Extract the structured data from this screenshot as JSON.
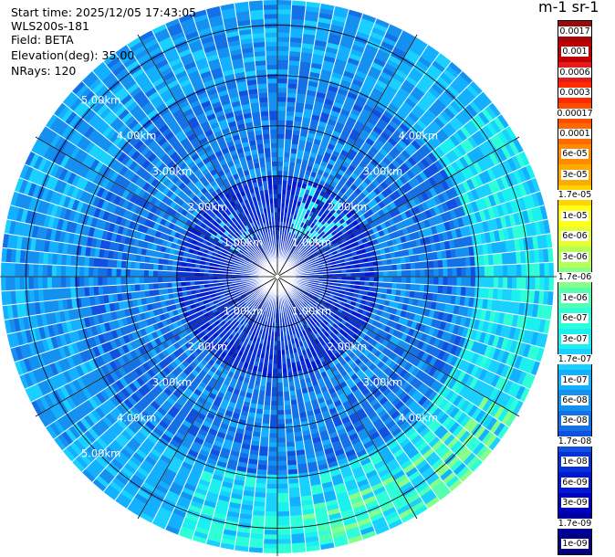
{
  "info": {
    "start_time": "Start time: 2025/12/05 17:43:05",
    "station": "WLS200s-181",
    "field": "Field: BETA",
    "elevation": "Elevation(deg): 35.00",
    "nrays": "NRays: 120"
  },
  "unit_label": "m-1 sr-1",
  "chart_data": {
    "type": "heatmap",
    "projection": "polar-ppi",
    "field": "BETA",
    "elevation_deg": 35.0,
    "n_rays": 120,
    "range_max_km": 5.5,
    "range_rings_km": [
      1,
      2,
      3,
      4,
      5
    ],
    "range_ring_labels": [
      "1.00km",
      "2.00km",
      "3.00km",
      "4.00km",
      "5.00km"
    ],
    "colorbar": {
      "labels": [
        "0.0017",
        "0.001",
        "0.0006",
        "0.0003",
        "0.00017",
        "0.0001",
        "6e-05",
        "3e-05",
        "1.7e-05",
        "1e-05",
        "6e-06",
        "3e-06",
        "1.7e-06",
        "1e-06",
        "6e-07",
        "3e-07",
        "1.7e-07",
        "1e-07",
        "6e-08",
        "3e-08",
        "1.7e-08",
        "1e-08",
        "6e-09",
        "3e-09",
        "1.7e-09",
        "1e-09"
      ],
      "colors": [
        "#9b0a0a",
        "#c00000",
        "#e51b1b",
        "#ff2a00",
        "#ff4d00",
        "#ff6a00",
        "#ff8a00",
        "#ffaa00",
        "#ffd400",
        "#ffff1a",
        "#e6ff33",
        "#b4ff55",
        "#88ff88",
        "#55ffb0",
        "#2effd8",
        "#1af0f0",
        "#1ad0ff",
        "#12b0ff",
        "#1490f0",
        "#1470e6",
        "#1050e0",
        "#0830d8",
        "#0018d0",
        "#0000c0",
        "#00009c",
        "#000080"
      ]
    },
    "value_summary": {
      "near_field": "1e-08 to 3e-08",
      "mid_range": "6e-08 to 1e-07",
      "far_range_east_southeast": "1.7e-07 to 6e-07"
    }
  }
}
